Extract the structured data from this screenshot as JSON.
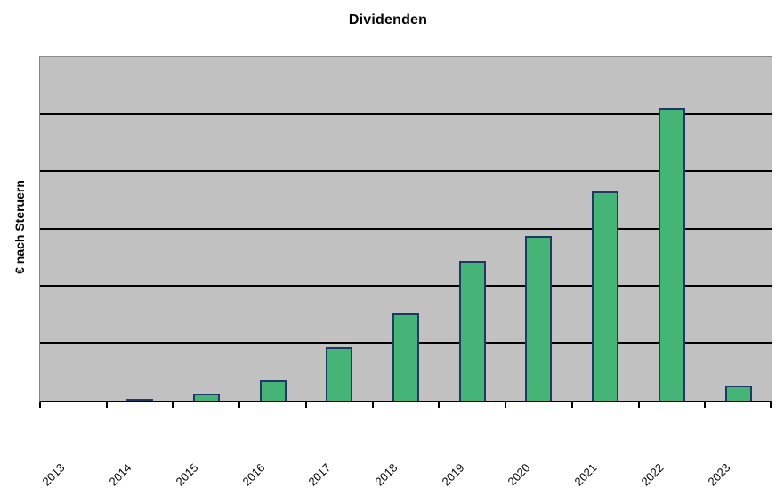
{
  "chart_data": {
    "type": "bar",
    "title": "Dividenden",
    "ylabel": "€ nach Steruern",
    "xlabel": "",
    "categories": [
      "2013",
      "2014",
      "2015",
      "2016",
      "2017",
      "2018",
      "2019",
      "2020",
      "2021",
      "2022",
      "2023"
    ],
    "values": [
      0,
      0.03,
      0.13,
      0.36,
      0.93,
      1.53,
      2.45,
      2.88,
      3.67,
      5.13,
      0.27
    ],
    "values_note": "y axis has no numeric tick labels; values estimated in gridline units read from plot",
    "ylim": [
      0,
      6
    ],
    "y_gridline_step": 1,
    "y_tick_labels_visible": false,
    "grid": "horizontal black gridlines on gray plot background",
    "legend": "none",
    "x_label_rotation_deg": -45,
    "bar_fill_color": "#45b477",
    "bar_border_color": "#1f3864",
    "plot_bg_color": "#c1c1c1",
    "plot_border_color": "#8a8a8a",
    "grid_color": "#000000",
    "axis_color": "#000000",
    "text_color": "#000000"
  }
}
